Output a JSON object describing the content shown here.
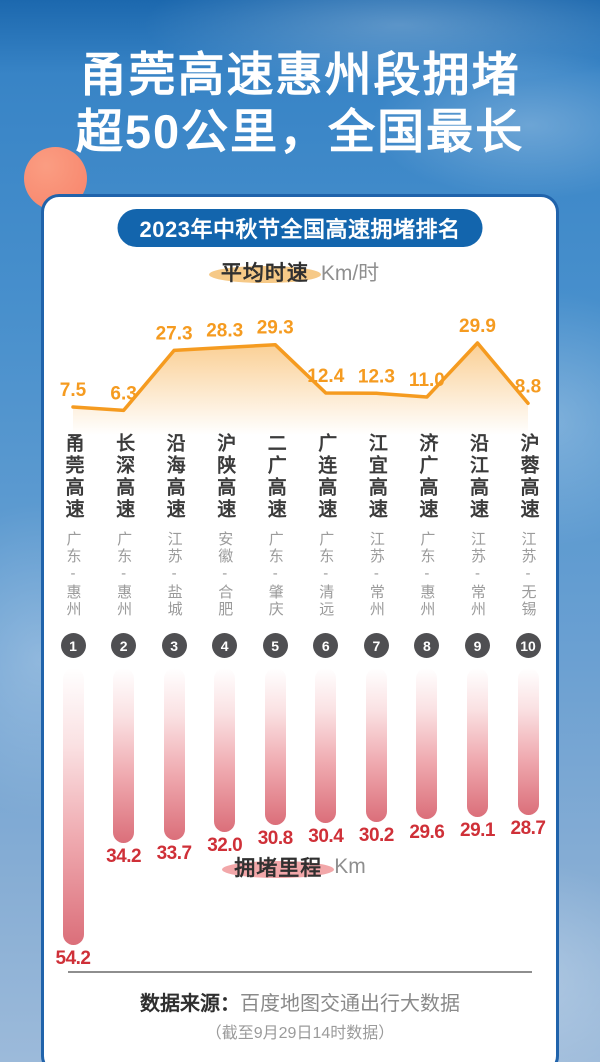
{
  "header": {
    "title_line1": "甬莞高速惠州段拥堵",
    "title_line2": "超50公里，全国最长"
  },
  "card": {
    "title": "2023年中秋节全国高速拥堵排名",
    "source_label": "数据来源：",
    "source_value": "百度地图交通出行大数据",
    "source_note": "（截至9月29日14时数据）"
  },
  "chart_data": {
    "type": "combo",
    "title": "2023年中秋节全国高速拥堵排名",
    "categories": [
      "甬莞高速",
      "长深高速",
      "沿海高速",
      "沪陕高速",
      "二广高速",
      "广连高速",
      "江宜高速",
      "济广高速",
      "沿江高速",
      "沪蓉高速"
    ],
    "regions": [
      "广东-惠州",
      "广东-惠州",
      "江苏-盐城",
      "安徽-合肥",
      "广东-肇庆",
      "广东-清远",
      "江苏-常州",
      "广东-惠州",
      "江苏-常州",
      "江苏-无锡"
    ],
    "ranks": [
      1,
      2,
      3,
      4,
      5,
      6,
      7,
      8,
      9,
      10
    ],
    "series": [
      {
        "name": "平均时速",
        "unit": "Km/时",
        "type": "line",
        "color": "#f59b20",
        "values": [
          7.5,
          6.3,
          27.3,
          28.3,
          29.3,
          12.4,
          12.3,
          11.0,
          29.9,
          8.8
        ]
      },
      {
        "name": "拥堵里程",
        "unit": "Km",
        "type": "bar",
        "direction": "down",
        "color": "#db6f7a",
        "values": [
          54.2,
          34.2,
          33.7,
          32.0,
          30.8,
          30.4,
          30.2,
          29.6,
          29.1,
          28.7
        ]
      }
    ],
    "legend_position": "inline-pills",
    "grid": false
  },
  "colors": {
    "sky_top": "#1c68ae",
    "sky_bottom": "#9cbada",
    "title_text": "#ffffff",
    "card_border": "#2063ab",
    "pill_bg": "#1365ad",
    "line_orange": "#f59b20",
    "speed_highlight": "#f6c987",
    "distance_highlight": "#f2a7a9",
    "bar_red": "#db6f7a",
    "value_red": "#cf3038",
    "badge_gray": "#4f4f52",
    "sun": "#f8836a"
  }
}
